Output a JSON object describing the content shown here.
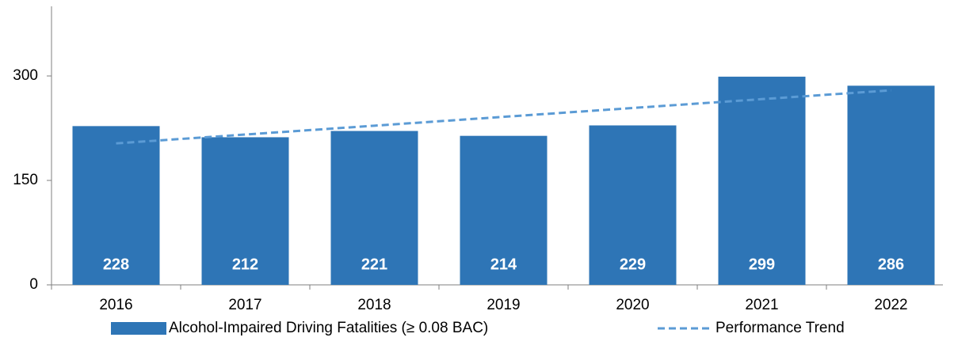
{
  "chart_data": {
    "type": "bar",
    "categories": [
      "2016",
      "2017",
      "2018",
      "2019",
      "2020",
      "2021",
      "2022"
    ],
    "series": [
      {
        "name": "Alcohol-Impaired Driving Fatalities (≥ 0.08 BAC)",
        "type": "bar",
        "color": "#2e75b6",
        "values": [
          228,
          212,
          221,
          214,
          229,
          299,
          286
        ],
        "show_labels": true
      },
      {
        "name": "Performance Trend",
        "type": "line",
        "style": "dashed",
        "color": "#5b9bd5",
        "values": [
          203.2,
          215.9,
          228.6,
          241.3,
          254.0,
          266.7,
          279.4
        ]
      }
    ],
    "ylim": [
      0,
      400
    ],
    "yticks": [
      0,
      150,
      300
    ],
    "grid": false,
    "legend": "bottom"
  }
}
